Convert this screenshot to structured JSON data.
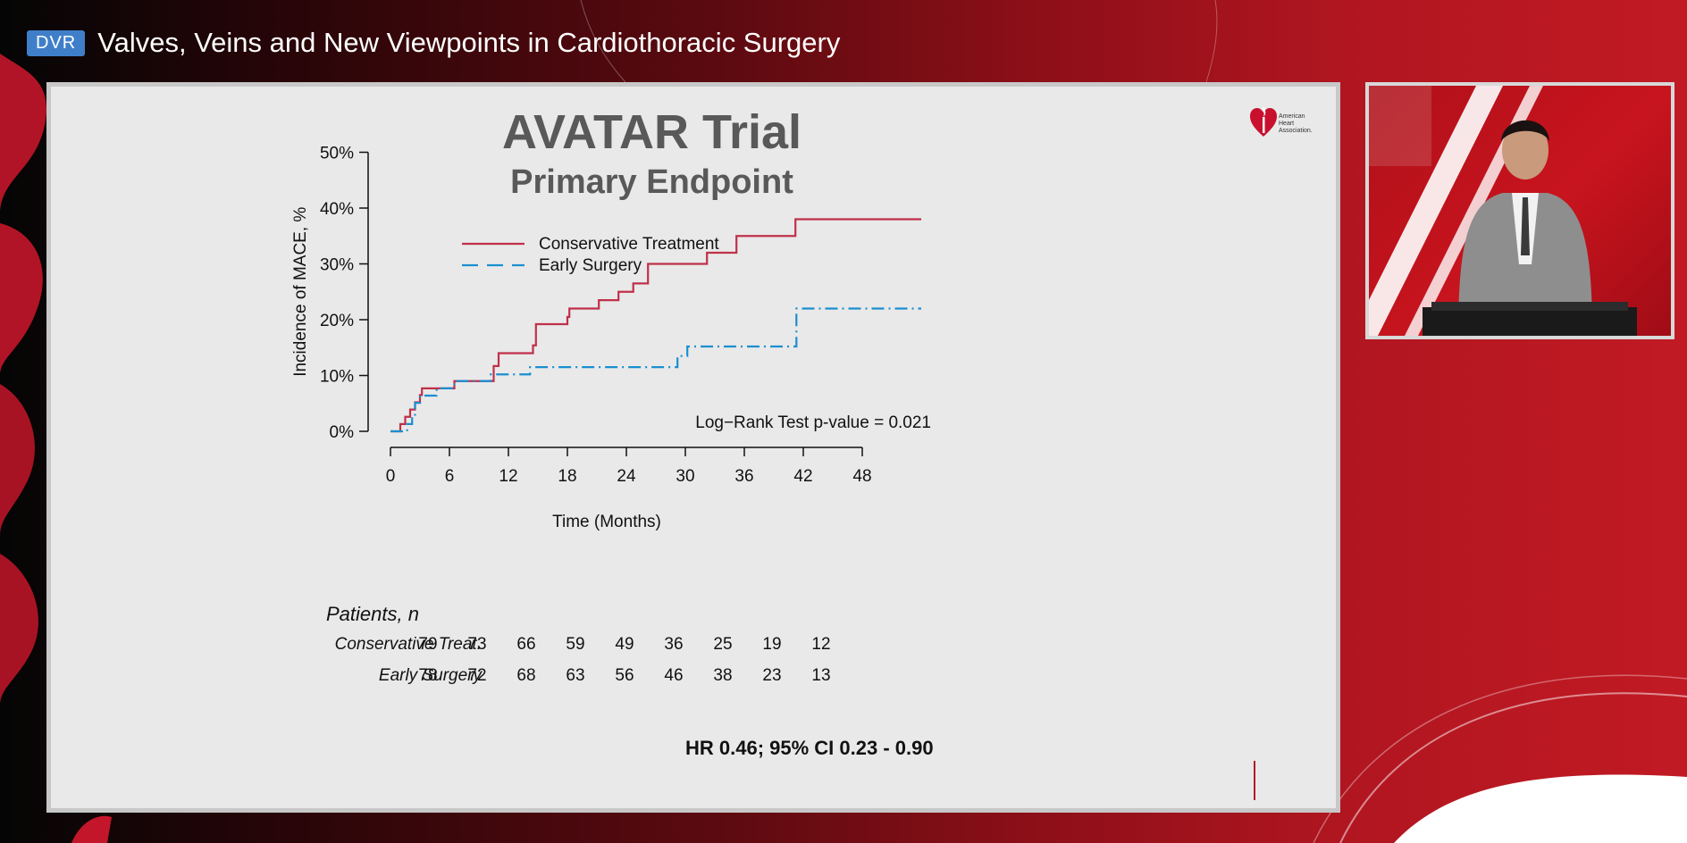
{
  "header": {
    "badge": "DVR",
    "title": "Valves, Veins and New Viewpoints in Cardiothoracic Surgery"
  },
  "slide": {
    "title": "AVATAR Trial",
    "subtitle": "Primary Endpoint",
    "logo_text": [
      "American",
      "Heart",
      "Association."
    ],
    "annotation": "Log−Rank Test p-value = 0.021",
    "hr_text": "HR 0.46; 95% CI 0.23 - 0.90"
  },
  "chart_data": {
    "type": "line",
    "xlabel": "Time (Months)",
    "ylabel": "Incidence of MACE, %",
    "xticks": [
      0,
      6,
      12,
      18,
      24,
      30,
      36,
      42,
      48
    ],
    "yticks": [
      "0%",
      "10%",
      "20%",
      "30%",
      "40%",
      "50%"
    ],
    "xlim": [
      0,
      48
    ],
    "ylim": [
      0,
      50
    ],
    "legend_position": "top-left",
    "series": [
      {
        "name": "Conservative Treatment",
        "color": "#c0304a",
        "style": "solid",
        "points": [
          [
            0,
            0
          ],
          [
            1,
            1.3
          ],
          [
            1.5,
            2.6
          ],
          [
            2,
            3.9
          ],
          [
            2.5,
            5.2
          ],
          [
            3,
            6.5
          ],
          [
            3.2,
            7.7
          ],
          [
            6.5,
            7.7
          ],
          [
            6.5,
            9
          ],
          [
            10,
            9
          ],
          [
            10.5,
            11.7
          ],
          [
            11,
            14
          ],
          [
            14,
            14
          ],
          [
            14.5,
            15.4
          ],
          [
            14.8,
            19.2
          ],
          [
            17.5,
            19.2
          ],
          [
            18,
            20.5
          ],
          [
            18.2,
            22
          ],
          [
            21,
            22
          ],
          [
            21.2,
            23.5
          ],
          [
            23,
            23.5
          ],
          [
            23.2,
            25
          ],
          [
            24.5,
            25
          ],
          [
            24.7,
            26.5
          ],
          [
            26,
            26.5
          ],
          [
            26.2,
            30
          ],
          [
            32,
            30
          ],
          [
            32.2,
            32
          ],
          [
            35,
            32
          ],
          [
            35.2,
            35
          ],
          [
            41,
            35
          ],
          [
            41.2,
            38
          ],
          [
            54,
            38
          ]
        ]
      },
      {
        "name": "Early Surgery",
        "color": "#1a8fd0",
        "style": "dashed",
        "points": [
          [
            0,
            0
          ],
          [
            1.5,
            0
          ],
          [
            1.7,
            1.3
          ],
          [
            2.2,
            2.6
          ],
          [
            2.5,
            5.1
          ],
          [
            3,
            6.4
          ],
          [
            4.5,
            6.4
          ],
          [
            4.7,
            7.7
          ],
          [
            6.3,
            7.7
          ],
          [
            6.5,
            9
          ],
          [
            10,
            9
          ],
          [
            10.2,
            10.2
          ],
          [
            14,
            10.2
          ],
          [
            14.2,
            11.5
          ],
          [
            29,
            11.5
          ],
          [
            29.2,
            13.5
          ],
          [
            30,
            13.5
          ],
          [
            30.2,
            15.2
          ],
          [
            41,
            15.2
          ],
          [
            41.3,
            22
          ],
          [
            54,
            22
          ]
        ]
      }
    ],
    "risk_table": {
      "title": "Patients, n",
      "times": [
        0,
        6,
        12,
        18,
        24,
        30,
        36,
        42,
        48
      ],
      "rows": [
        {
          "label": "Conservative Treat.",
          "values": [
            79,
            73,
            66,
            59,
            49,
            36,
            25,
            19,
            12
          ]
        },
        {
          "label": "Early Surgery",
          "values": [
            78,
            72,
            68,
            63,
            56,
            46,
            38,
            23,
            13
          ]
        }
      ]
    }
  }
}
